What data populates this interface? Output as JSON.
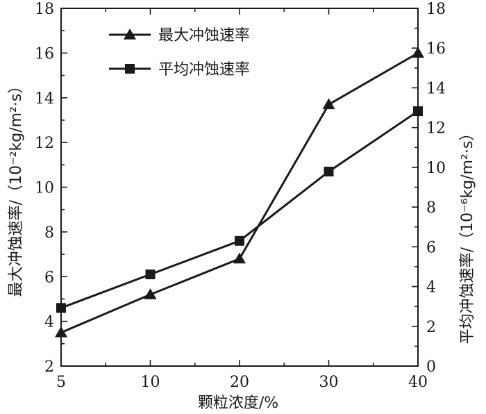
{
  "chart_data": {
    "type": "line",
    "x_categories": [
      "5",
      "10",
      "20",
      "30",
      "40"
    ],
    "xlabel": "颗粒浓度/%",
    "ylabel_left": "最大冲蚀速率/（10⁻²kg/m²·s）",
    "ylabel_right": "平均冲蚀速率/（10⁻⁶kg/m²·s）",
    "ylim_left": [
      2,
      18
    ],
    "ylim_right": [
      0,
      18
    ],
    "yticks_left": [
      "2",
      "4",
      "6",
      "8",
      "10",
      "12",
      "14",
      "16",
      "18"
    ],
    "yticks_right": [
      "0",
      "2",
      "4",
      "6",
      "8",
      "10",
      "12",
      "14",
      "16",
      "18"
    ],
    "legend_position": "top-left",
    "series": [
      {
        "name": "最大冲蚀速率",
        "axis": "left",
        "marker": "triangle",
        "values": [
          3.5,
          5.2,
          6.8,
          13.7,
          16.0
        ]
      },
      {
        "name": "平均冲蚀速率",
        "axis": "left",
        "marker": "square",
        "values": [
          4.6,
          6.1,
          7.6,
          10.7,
          13.4
        ]
      }
    ]
  }
}
